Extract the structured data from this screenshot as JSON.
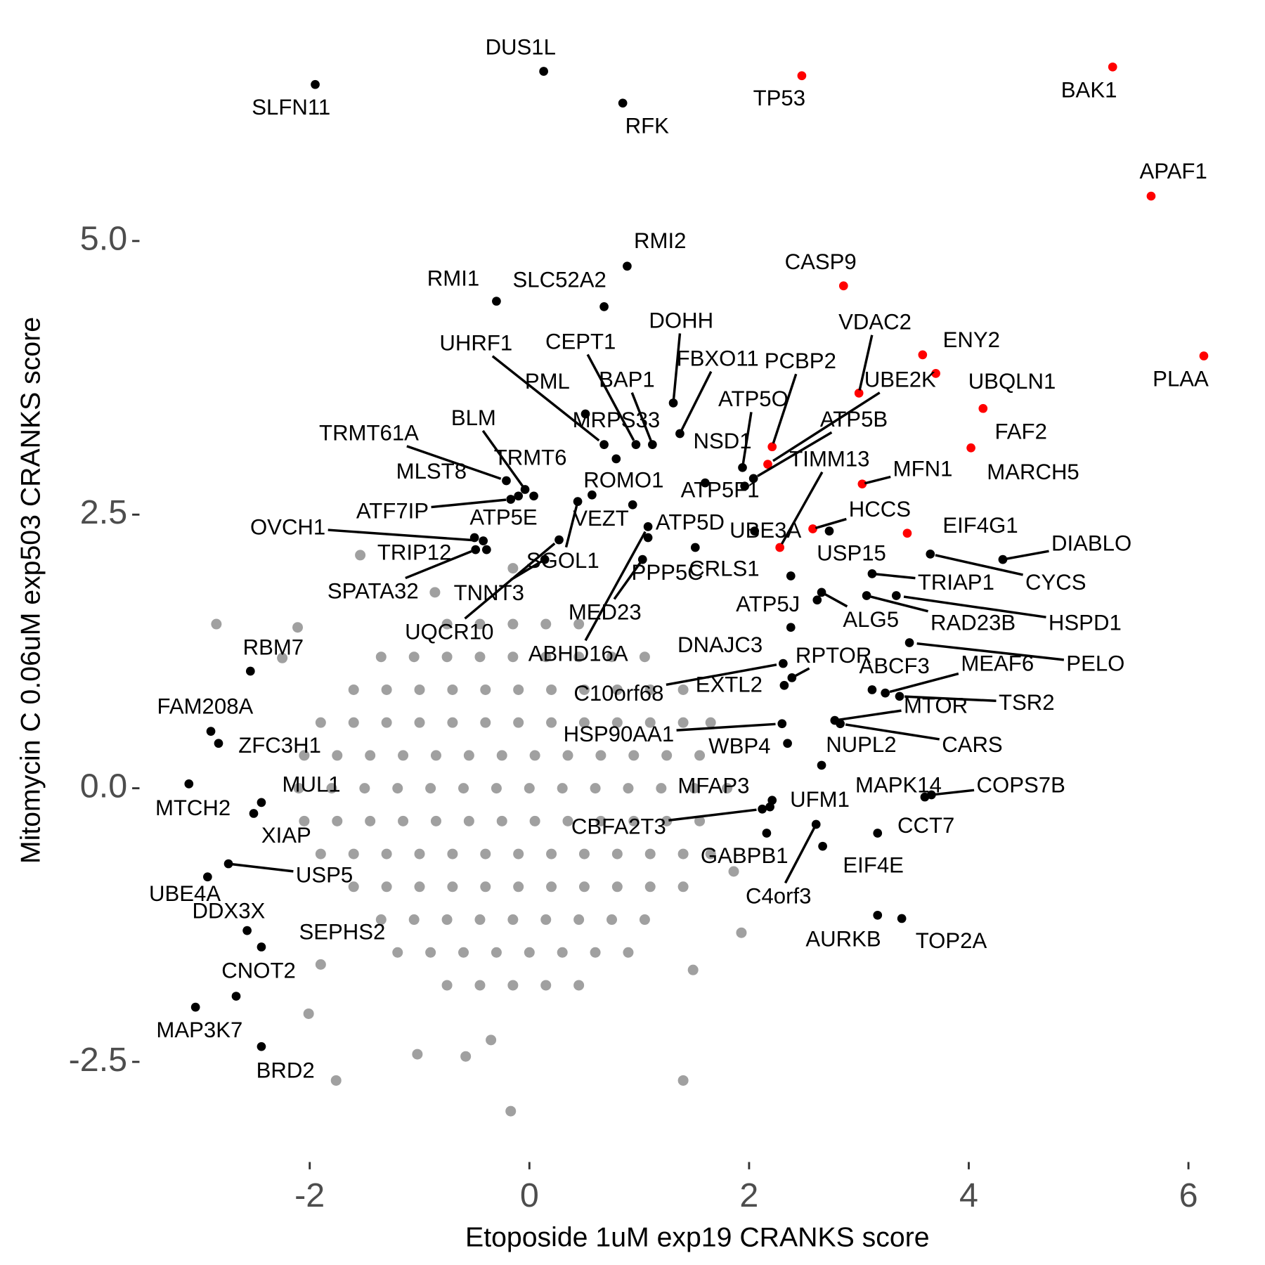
{
  "chart_data": {
    "type": "scatter",
    "x_label": "Etoposide 1uM exp19 CRANKS score",
    "y_label": "Mitomycin C 0.06uM exp503 CRANKS score",
    "xlim": [
      -3.55,
      6.35
    ],
    "ylim": [
      -3.3,
      7.15
    ],
    "xticks": [
      -2,
      0,
      2,
      4,
      6
    ],
    "yticks": [
      -2.5,
      {
        "value": 0,
        "label": "0.0"
      },
      2.5,
      {
        "value": 5,
        "label": "5.0"
      }
    ],
    "grid": false,
    "series": [
      {
        "color": "#a0a0a0",
        "x": [
          -0.75,
          -0.45,
          -0.15,
          0.15,
          0.45,
          -1.35,
          -1.05,
          -0.75,
          -0.45,
          -0.15,
          0.15,
          0.45,
          0.75,
          1.05,
          -1.6,
          -1.3,
          -1.0,
          -0.7,
          -0.4,
          -0.1,
          0.2,
          0.5,
          0.8,
          1.1,
          1.4,
          -1.9,
          -1.6,
          -1.3,
          -1.0,
          -0.7,
          -0.4,
          -0.1,
          0.2,
          0.5,
          0.8,
          1.1,
          1.4,
          1.65,
          -2.05,
          -1.75,
          -1.45,
          -1.15,
          -0.85,
          -0.55,
          -0.25,
          0.05,
          0.35,
          0.65,
          0.95,
          1.25,
          1.55,
          -2.1,
          -1.8,
          -1.5,
          -1.2,
          -0.9,
          -0.6,
          -0.3,
          0,
          0.3,
          0.6,
          0.9,
          1.2,
          1.5,
          1.8,
          -2.05,
          -1.75,
          -1.45,
          -1.15,
          -0.85,
          -0.55,
          -0.25,
          0.05,
          0.35,
          0.65,
          0.95,
          1.25,
          1.55,
          -1.9,
          -1.6,
          -1.3,
          -1.0,
          -0.7,
          -0.4,
          -0.1,
          0.2,
          0.5,
          0.8,
          1.1,
          1.4,
          1.65,
          -1.6,
          -1.3,
          -1.0,
          -0.7,
          -0.4,
          -0.1,
          0.2,
          0.5,
          0.8,
          1.1,
          1.4,
          -1.35,
          -1.05,
          -0.75,
          -0.45,
          -0.15,
          0.15,
          0.45,
          0.75,
          1.05,
          -1.2,
          -0.9,
          -0.6,
          -0.3,
          0,
          0.3,
          0.6,
          0.9,
          -0.75,
          -0.45,
          -0.15,
          0.15,
          0.45,
          -2.85,
          -1.54,
          -0.17,
          1.4,
          -1.76,
          1.49,
          -2.11,
          -2.25,
          -0.86,
          -0.15,
          -0.35,
          -0.58,
          -1.02,
          1.93,
          1.86,
          -2.01,
          -1.9
        ],
        "values": [
          1.5,
          1.5,
          1.5,
          1.5,
          1.5,
          1.2,
          1.2,
          1.2,
          1.2,
          1.2,
          1.2,
          1.2,
          1.2,
          1.2,
          0.9,
          0.9,
          0.9,
          0.9,
          0.9,
          0.9,
          0.9,
          0.9,
          0.9,
          0.9,
          0.9,
          0.6,
          0.6,
          0.6,
          0.6,
          0.6,
          0.6,
          0.6,
          0.6,
          0.6,
          0.6,
          0.6,
          0.6,
          0.6,
          0.3,
          0.3,
          0.3,
          0.3,
          0.3,
          0.3,
          0.3,
          0.3,
          0.3,
          0.3,
          0.3,
          0.3,
          0.3,
          0,
          0,
          0,
          0,
          0,
          0,
          0,
          0,
          0,
          0,
          0,
          0,
          0,
          0,
          -0.3,
          -0.3,
          -0.3,
          -0.3,
          -0.3,
          -0.3,
          -0.3,
          -0.3,
          -0.3,
          -0.3,
          -0.3,
          -0.3,
          -0.3,
          -0.6,
          -0.6,
          -0.6,
          -0.6,
          -0.6,
          -0.6,
          -0.6,
          -0.6,
          -0.6,
          -0.6,
          -0.6,
          -0.6,
          -0.6,
          -0.9,
          -0.9,
          -0.9,
          -0.9,
          -0.9,
          -0.9,
          -0.9,
          -0.9,
          -0.9,
          -0.9,
          -0.9,
          -1.2,
          -1.2,
          -1.2,
          -1.2,
          -1.2,
          -1.2,
          -1.2,
          -1.2,
          -1.2,
          -1.5,
          -1.5,
          -1.5,
          -1.5,
          -1.5,
          -1.5,
          -1.5,
          -1.5,
          -1.8,
          -1.8,
          -1.8,
          -1.8,
          -1.8,
          1.5,
          2.13,
          -2.95,
          -2.67,
          -2.67,
          -1.66,
          1.47,
          1.19,
          1.79,
          2.01,
          -2.3,
          -2.45,
          -2.43,
          -1.32,
          -0.76,
          -2.06,
          -1.61
        ]
      },
      {
        "color": "#000000",
        "labels": [
          "DUS1L",
          "SLFN11",
          "RFK",
          "RMI2",
          "RMI1",
          "SLC52A2",
          "DOHH",
          "UHRF1",
          "CEPT1",
          "FBXO11",
          "PML",
          "BAP1",
          "MRPS33",
          "ATP5O",
          "NSD1",
          "ATP5B",
          "BLM",
          "TRMT61A",
          "TRMT6",
          "MLST8",
          "ATF7IP",
          "ROMO1",
          "ATP5F1",
          "VEZT",
          "SGOL1",
          "TNNT3",
          "UQCR10",
          "ATP5E",
          "OVCH1",
          "TRIP12",
          "SPATA32",
          "ATP5D",
          "UBE3A",
          "USP15",
          "DIABLO",
          "CYCS",
          "TRIAP1",
          "HSPD1",
          "RAD23B",
          "PELO",
          "MEAF6",
          "ABCF3",
          "TSR2",
          "MTOR",
          "CARS",
          "NUPL2",
          "MAPK14",
          "COPS7B",
          "CCT7",
          "EIF4E",
          "C4orf3",
          "UFM1",
          "MFAP3",
          "CBFA2T3",
          "GABPB1",
          "AURKB",
          "TOP2A",
          "WBP4",
          "HSP90AA1",
          "EXTL2",
          "C10orf68",
          "RPTOR",
          "DNAJC3",
          "ALG5",
          "ATP5J",
          "CRLS1",
          "PPP5C",
          "MED23",
          "ABHD16A",
          "RBM7",
          "FAM208A",
          "ZFC3H1",
          "MTCH2",
          "MUL1",
          "XIAP",
          "USP5",
          "UBE4A",
          "DDX3X",
          "SEPHS2",
          "CNOT2",
          "MAP3K7",
          "BRD2"
        ],
        "x": [
          0.13,
          -1.95,
          0.85,
          0.89,
          -0.3,
          0.68,
          1.31,
          0.68,
          0.97,
          1.37,
          0.51,
          1.12,
          0.79,
          1.94,
          1.96,
          2.04,
          -0.04,
          -0.21,
          0.04,
          -0.1,
          -0.17,
          0.57,
          1.6,
          0.94,
          0.44,
          0.14,
          0.27,
          -0.5,
          -0.42,
          -0.39,
          -0.49,
          1.51,
          2.05,
          2.73,
          4.31,
          3.65,
          3.12,
          3.34,
          3.07,
          3.46,
          3.24,
          3.12,
          3.37,
          2.78,
          2.83,
          2.66,
          3.6,
          3.66,
          3.17,
          2.67,
          2.61,
          2.21,
          2.19,
          2.12,
          2.16,
          3.17,
          3.39,
          2.35,
          2.3,
          2.32,
          2.31,
          2.39,
          2.38,
          2.66,
          2.62,
          2.38,
          1.08,
          1.03,
          1.08,
          -2.54,
          -2.9,
          -2.83,
          -3.1,
          -2.44,
          -2.51,
          -2.74,
          -2.93,
          -2.57,
          -2.44,
          -2.67,
          -3.04,
          -2.44
        ],
        "values": [
          6.55,
          6.43,
          6.26,
          4.77,
          4.45,
          4.4,
          3.52,
          3.14,
          3.14,
          3.24,
          3.42,
          3.14,
          3.01,
          2.93,
          2.76,
          2.83,
          2.73,
          2.81,
          2.67,
          2.67,
          2.64,
          2.68,
          2.79,
          2.59,
          2.62,
          2.09,
          2.27,
          2.29,
          2.26,
          2.18,
          2.18,
          2.2,
          2.35,
          2.35,
          2.09,
          2.14,
          1.96,
          1.76,
          1.76,
          1.33,
          0.87,
          0.9,
          0.84,
          0.62,
          0.59,
          0.21,
          -0.08,
          -0.06,
          -0.41,
          -0.53,
          -0.33,
          -0.11,
          -0.17,
          -0.19,
          -0.41,
          -1.16,
          -1.19,
          0.41,
          0.59,
          0.94,
          1.14,
          1.01,
          1.47,
          1.79,
          1.72,
          1.94,
          2.29,
          2.09,
          2.39,
          1.07,
          0.52,
          0.41,
          0.04,
          -0.13,
          -0.23,
          -0.69,
          -0.81,
          -1.3,
          -1.45,
          -1.9,
          -2.0,
          -2.36
        ]
      },
      {
        "color": "#ff0000",
        "labels": [
          "TP53",
          "BAK1",
          "APAF1",
          "CASP9",
          "PLAA",
          "ENY2",
          "UBQLN1",
          "VDAC2",
          "FAF2",
          "MARCH5",
          "PCBP2",
          "UBE2K",
          "MFN1",
          "HCCS",
          "EIF4G1",
          "TIMM13"
        ],
        "x": [
          2.48,
          5.31,
          5.66,
          2.86,
          6.14,
          3.58,
          3.7,
          3.0,
          4.13,
          4.02,
          2.21,
          2.17,
          3.03,
          2.58,
          3.44,
          2.28
        ],
        "values": [
          6.51,
          6.59,
          5.41,
          4.59,
          3.95,
          3.96,
          3.79,
          3.61,
          3.47,
          3.11,
          3.12,
          2.96,
          2.78,
          2.37,
          2.33,
          2.2
        ]
      }
    ]
  }
}
